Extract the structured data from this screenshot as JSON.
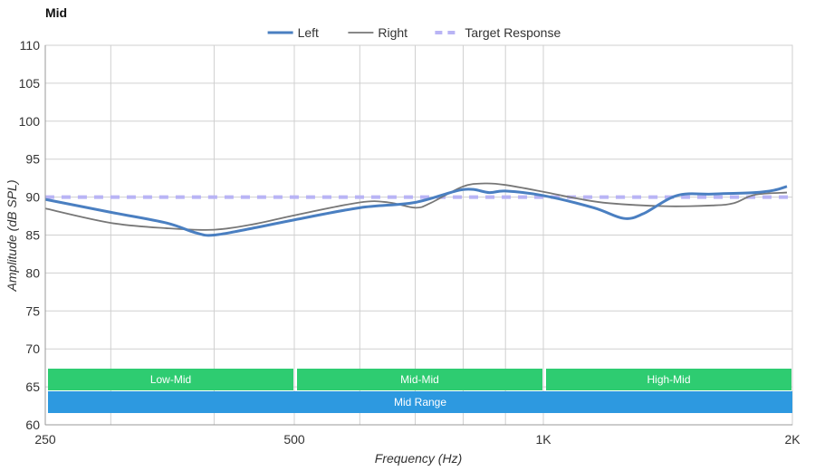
{
  "chart_data": {
    "type": "line",
    "title": "Mid",
    "xlabel": "Frequency (Hz)",
    "ylabel": "Amplitude (dB SPL)",
    "x_scale": "log",
    "xlim": [
      250,
      2000
    ],
    "ylim": [
      60,
      110
    ],
    "x_ticks": [
      {
        "value": 250,
        "label": "250"
      },
      {
        "value": 500,
        "label": "500"
      },
      {
        "value": 1000,
        "label": "1K"
      },
      {
        "value": 2000,
        "label": "2K"
      }
    ],
    "x_gridlines": [
      300,
      400,
      500,
      600,
      700,
      800,
      900,
      1000
    ],
    "y_ticks": [
      60,
      65,
      70,
      75,
      80,
      85,
      90,
      95,
      100,
      105,
      110
    ],
    "grid": true,
    "legend_position": "top-center",
    "series": [
      {
        "name": "Left",
        "color": "#4a7fc1",
        "style": "solid-thick",
        "points": [
          [
            250,
            89.7
          ],
          [
            300,
            88.0
          ],
          [
            350,
            86.6
          ],
          [
            380,
            85.3
          ],
          [
            400,
            85.0
          ],
          [
            450,
            86.0
          ],
          [
            500,
            87.0
          ],
          [
            600,
            88.6
          ],
          [
            700,
            89.3
          ],
          [
            800,
            91.0
          ],
          [
            860,
            90.6
          ],
          [
            900,
            90.8
          ],
          [
            1000,
            90.2
          ],
          [
            1150,
            88.6
          ],
          [
            1250,
            87.2
          ],
          [
            1320,
            87.8
          ],
          [
            1450,
            90.2
          ],
          [
            1600,
            90.4
          ],
          [
            1800,
            90.6
          ],
          [
            1900,
            90.9
          ],
          [
            1970,
            91.4
          ]
        ]
      },
      {
        "name": "Right",
        "color": "#777777",
        "style": "solid",
        "points": [
          [
            250,
            88.5
          ],
          [
            300,
            86.6
          ],
          [
            350,
            85.9
          ],
          [
            400,
            85.7
          ],
          [
            450,
            86.5
          ],
          [
            500,
            87.6
          ],
          [
            600,
            89.3
          ],
          [
            650,
            89.3
          ],
          [
            700,
            88.6
          ],
          [
            730,
            89.2
          ],
          [
            800,
            91.4
          ],
          [
            850,
            91.8
          ],
          [
            900,
            91.6
          ],
          [
            1000,
            90.7
          ],
          [
            1100,
            89.8
          ],
          [
            1200,
            89.2
          ],
          [
            1400,
            88.8
          ],
          [
            1600,
            88.9
          ],
          [
            1700,
            89.2
          ],
          [
            1800,
            90.3
          ],
          [
            1970,
            90.6
          ]
        ]
      },
      {
        "name": "Target Response",
        "color": "#b9b4f5",
        "style": "dashed",
        "points": [
          [
            250,
            90.0
          ],
          [
            2000,
            90.0
          ]
        ]
      }
    ],
    "bands": [
      {
        "label": "Low-Mid",
        "from": 250,
        "to": 500,
        "color": "#2ecc71",
        "row": 1
      },
      {
        "label": "Mid-Mid",
        "from": 500,
        "to": 1000,
        "color": "#2ecc71",
        "row": 1
      },
      {
        "label": "High-Mid",
        "from": 1000,
        "to": 2000,
        "color": "#2ecc71",
        "row": 1
      },
      {
        "label": "Mid Range",
        "from": 250,
        "to": 2000,
        "color": "#2d99e0",
        "row": 2
      }
    ]
  }
}
